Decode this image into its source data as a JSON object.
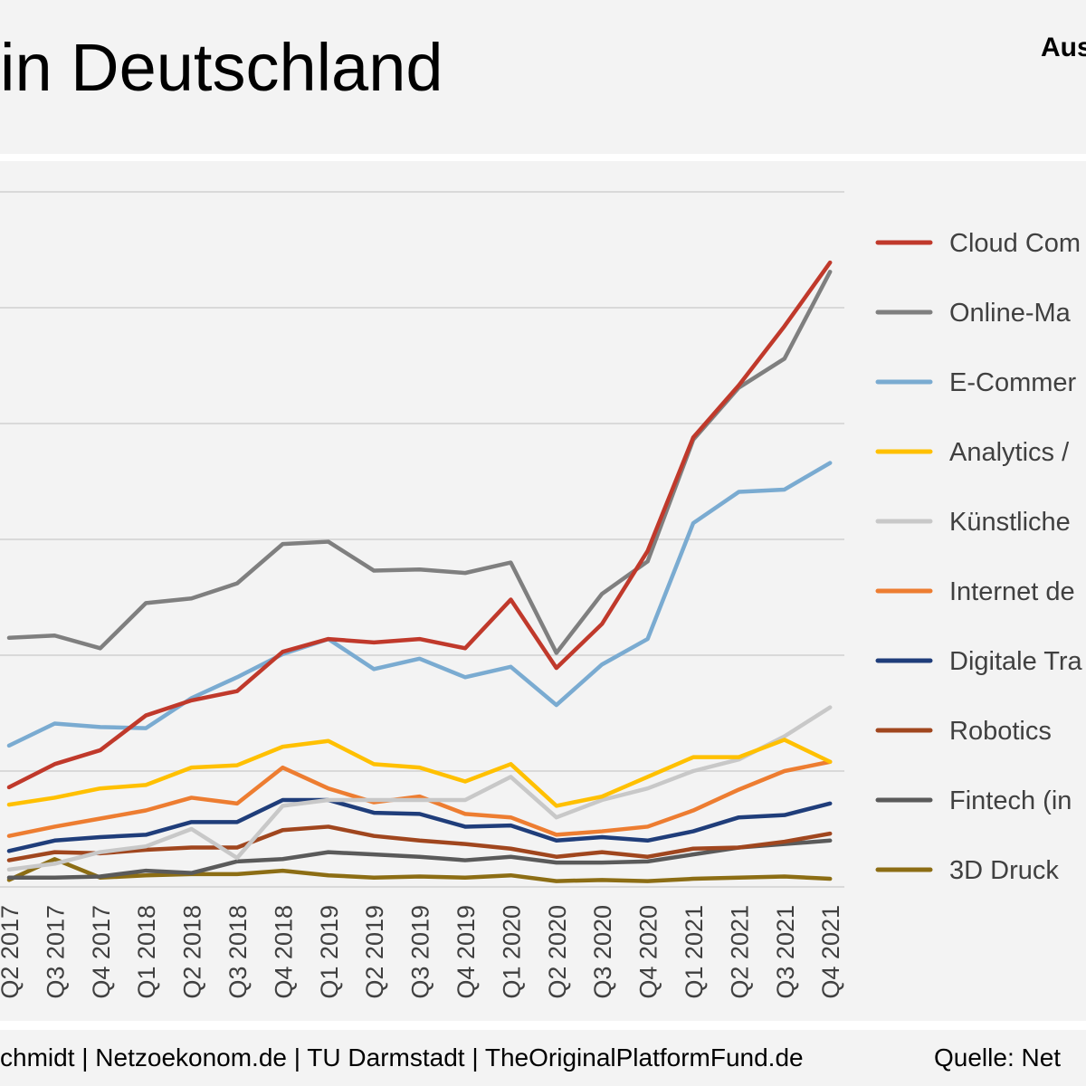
{
  "header": {
    "title": "in Deutschland",
    "corner_label": "Aus"
  },
  "footer": {
    "left": "chmidt | Netzoekonom.de | TU Darmstadt | TheOriginalPlatformFund.de",
    "right": "Quelle: Net"
  },
  "chart_data": {
    "type": "line",
    "title": "in Deutschland",
    "categories": [
      "Q2 2017",
      "Q3 2017",
      "Q4 2017",
      "Q1 2018",
      "Q2 2018",
      "Q3 2018",
      "Q4 2018",
      "Q1 2019",
      "Q2 2019",
      "Q3 2019",
      "Q4 2019",
      "Q1 2020",
      "Q2 2020",
      "Q3 2020",
      "Q4 2020",
      "Q1 2021",
      "Q2 2021",
      "Q3 2021",
      "Q4 2021"
    ],
    "ylim": [
      0,
      60
    ],
    "grid": true,
    "legend_position": "right",
    "series": [
      {
        "name": "Cloud Com",
        "color": "#c0392b",
        "values": [
          8.6,
          10.6,
          11.8,
          14.8,
          16.1,
          16.9,
          20.3,
          21.4,
          21.1,
          21.4,
          20.6,
          24.8,
          18.9,
          22.7,
          29.0,
          38.8,
          43.3,
          48.4,
          53.9
        ]
      },
      {
        "name": "Online-Ma",
        "color": "#7f7f7f",
        "values": [
          21.5,
          21.7,
          20.6,
          24.5,
          24.9,
          26.2,
          29.6,
          29.8,
          27.3,
          27.4,
          27.1,
          28.0,
          20.2,
          25.3,
          28.1,
          38.6,
          43.1,
          45.6,
          53.1
        ]
      },
      {
        "name": "E-Commer",
        "color": "#7aabd1",
        "values": [
          12.2,
          14.1,
          13.8,
          13.7,
          16.3,
          18.1,
          20.1,
          21.4,
          18.8,
          19.7,
          18.1,
          19.0,
          15.7,
          19.2,
          21.4,
          31.4,
          34.1,
          34.3,
          36.6
        ]
      },
      {
        "name": "Analytics /",
        "color": "#ffc000",
        "values": [
          7.1,
          7.7,
          8.5,
          8.8,
          10.3,
          10.5,
          12.1,
          12.6,
          10.6,
          10.3,
          9.1,
          10.6,
          7.0,
          7.8,
          9.5,
          11.2,
          11.2,
          12.7,
          10.8
        ]
      },
      {
        "name": "Künstliche",
        "color": "#c8c8c8",
        "values": [
          1.5,
          2.0,
          3.0,
          3.5,
          5.0,
          2.5,
          7.0,
          7.5,
          7.5,
          7.5,
          7.5,
          9.5,
          6.0,
          7.5,
          8.5,
          10.0,
          11.0,
          13.0,
          15.5
        ]
      },
      {
        "name": "Internet de",
        "color": "#ed7d31",
        "values": [
          4.4,
          5.2,
          5.9,
          6.6,
          7.7,
          7.2,
          10.3,
          8.5,
          7.3,
          7.8,
          6.3,
          6.0,
          4.5,
          4.8,
          5.2,
          6.6,
          8.4,
          10.0,
          10.8
        ]
      },
      {
        "name": "Digitale Tra",
        "color": "#1f3d7a",
        "values": [
          3.1,
          4.0,
          4.3,
          4.5,
          5.6,
          5.6,
          7.5,
          7.5,
          6.4,
          6.3,
          5.2,
          5.3,
          4.0,
          4.3,
          4.0,
          4.8,
          6.0,
          6.2,
          7.2
        ]
      },
      {
        "name": "Robotics",
        "color": "#a0461e",
        "values": [
          2.3,
          3.0,
          2.9,
          3.2,
          3.4,
          3.4,
          4.9,
          5.2,
          4.4,
          4.0,
          3.7,
          3.3,
          2.6,
          3.0,
          2.6,
          3.3,
          3.4,
          3.9,
          4.6
        ]
      },
      {
        "name": "Fintech (in",
        "color": "#5a5a5a",
        "values": [
          0.8,
          0.8,
          0.9,
          1.4,
          1.2,
          2.2,
          2.4,
          3.0,
          2.8,
          2.6,
          2.3,
          2.6,
          2.1,
          2.1,
          2.2,
          2.8,
          3.4,
          3.7,
          4.0
        ]
      },
      {
        "name": "3D Druck",
        "color": "#8c6d14",
        "values": [
          0.6,
          2.4,
          0.8,
          1.0,
          1.1,
          1.1,
          1.4,
          1.0,
          0.8,
          0.9,
          0.8,
          1.0,
          0.5,
          0.6,
          0.5,
          0.7,
          0.8,
          0.9,
          0.7
        ]
      }
    ]
  }
}
